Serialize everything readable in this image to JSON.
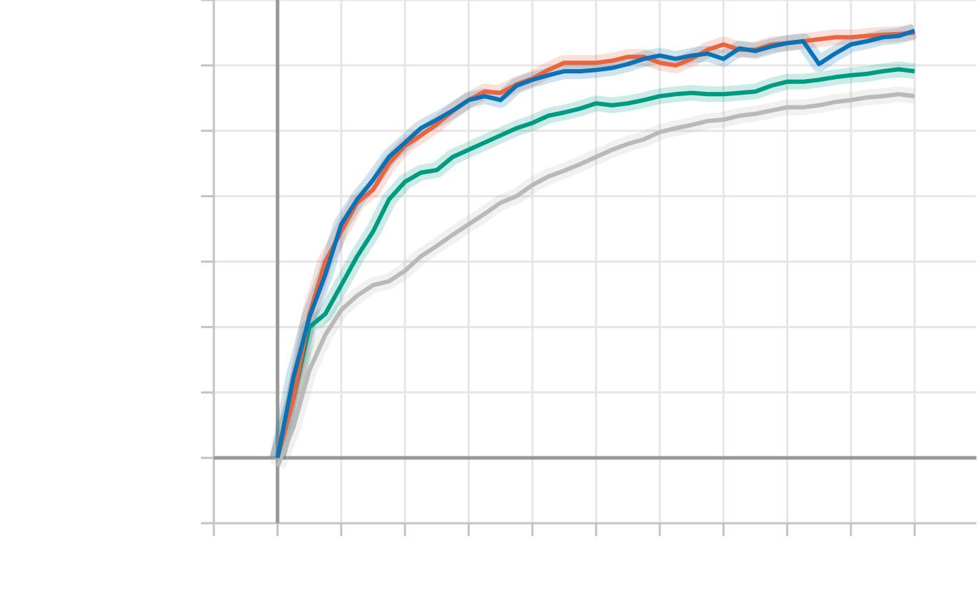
{
  "chart_data": {
    "type": "line",
    "x": [
      0,
      0.25,
      0.5,
      0.75,
      1,
      1.25,
      1.5,
      1.75,
      2,
      2.25,
      2.5,
      2.75,
      3,
      3.25,
      3.5,
      3.75,
      4,
      4.25,
      4.5,
      4.75,
      5,
      5.25,
      5.5,
      5.75,
      6,
      6.25,
      6.5,
      6.75,
      7,
      7.25,
      7.5,
      7.75,
      8,
      8.25,
      8.5,
      8.75,
      9,
      9.25,
      9.5,
      9.75,
      10
    ],
    "series": [
      {
        "color": "#b9b9b9",
        "values": [
          -0.13,
          0.47,
          1.34,
          1.88,
          2.26,
          2.48,
          2.64,
          2.7,
          2.86,
          3.08,
          3.24,
          3.41,
          3.57,
          3.73,
          3.9,
          4.0,
          4.17,
          4.3,
          4.39,
          4.49,
          4.6,
          4.71,
          4.8,
          4.87,
          4.98,
          5.04,
          5.09,
          5.15,
          5.17,
          5.23,
          5.26,
          5.31,
          5.36,
          5.36,
          5.39,
          5.44,
          5.47,
          5.51,
          5.53,
          5.56,
          5.53
        ]
      },
      {
        "color": "#009a80",
        "values": [
          0,
          0.9,
          2.0,
          2.2,
          2.64,
          3.08,
          3.46,
          3.95,
          4.22,
          4.36,
          4.4,
          4.6,
          4.71,
          4.82,
          4.93,
          5.04,
          5.12,
          5.23,
          5.28,
          5.34,
          5.42,
          5.39,
          5.42,
          5.47,
          5.53,
          5.56,
          5.58,
          5.56,
          5.56,
          5.58,
          5.6,
          5.69,
          5.75,
          5.75,
          5.78,
          5.82,
          5.85,
          5.87,
          5.91,
          5.94,
          5.91
        ]
      },
      {
        "color": "#e8653f",
        "values": [
          0,
          0.9,
          2.2,
          3.0,
          3.46,
          3.9,
          4.1,
          4.5,
          4.77,
          4.93,
          5.1,
          5.3,
          5.47,
          5.6,
          5.58,
          5.71,
          5.8,
          5.93,
          6.04,
          6.04,
          6.04,
          6.07,
          6.13,
          6.13,
          6.04,
          6.0,
          6.1,
          6.24,
          6.32,
          6.24,
          6.24,
          6.32,
          6.34,
          6.37,
          6.4,
          6.43,
          6.43,
          6.45,
          6.47,
          6.48,
          6.5
        ]
      },
      {
        "color": "#0a72b5",
        "values": [
          0,
          1.23,
          2.15,
          2.8,
          3.57,
          3.95,
          4.25,
          4.6,
          4.82,
          5.04,
          5.17,
          5.31,
          5.47,
          5.53,
          5.47,
          5.69,
          5.78,
          5.85,
          5.91,
          5.91,
          5.93,
          5.96,
          6.02,
          6.1,
          6.15,
          6.1,
          6.15,
          6.18,
          6.1,
          6.26,
          6.22,
          6.29,
          6.34,
          6.37,
          6.02,
          6.18,
          6.32,
          6.37,
          6.43,
          6.45,
          6.53
        ]
      }
    ],
    "xlim": [
      -1,
      10.97
    ],
    "xticks": [
      -1,
      0,
      1,
      2,
      3,
      4,
      5,
      6,
      7,
      8,
      9,
      10
    ],
    "ylim": [
      -1,
      7
    ],
    "yticks": [
      -1,
      0,
      1,
      2,
      3,
      4,
      5,
      6,
      7
    ],
    "grid": true,
    "zero_lines": true
  }
}
